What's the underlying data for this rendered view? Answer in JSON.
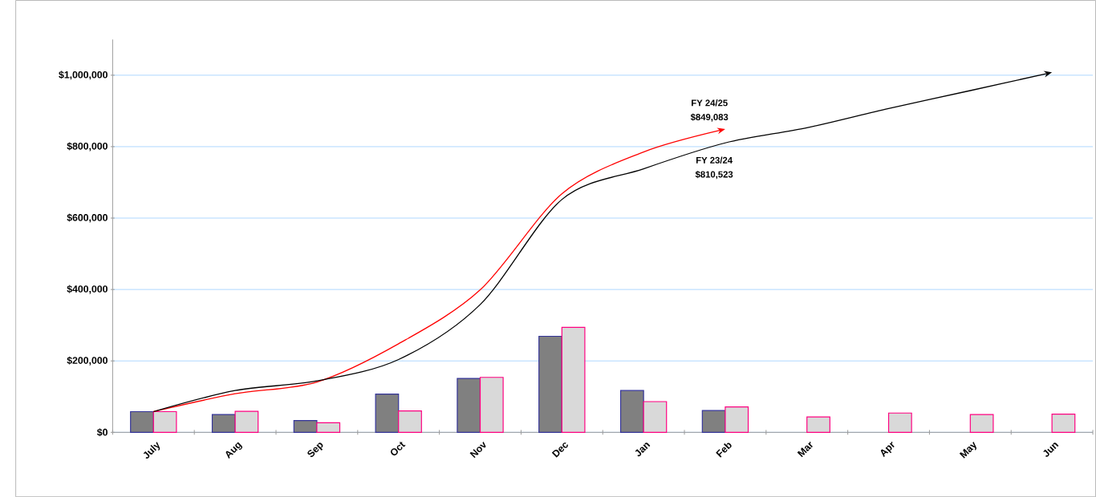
{
  "chart_data": {
    "type": "bar",
    "categories": [
      "July",
      "Aug",
      "Sep",
      "Oct",
      "Nov",
      "Dec",
      "Jan",
      "Feb",
      "Mar",
      "Apr",
      "May",
      "Jun"
    ],
    "series": [
      {
        "color": "#808080",
        "values": [
          58000,
          50000,
          33000,
          107000,
          151000,
          269000,
          117000,
          61000,
          null,
          null,
          null,
          null
        ]
      },
      {
        "color": "#d9d9d9",
        "values": [
          58000,
          59000,
          27000,
          60000,
          154000,
          294000,
          86000,
          71000,
          43000,
          54000,
          50000,
          51000
        ]
      },
      {
        "type": "line",
        "color": "#ff0000",
        "values": [
          58000,
          108000,
          141000,
          248000,
          399000,
          668000,
          785000,
          849083,
          null,
          null,
          null,
          null
        ]
      },
      {
        "type": "line",
        "color": "#000000",
        "values": [
          58000,
          117000,
          144000,
          204000,
          358000,
          652000,
          738000,
          810523,
          853000,
          907000,
          957000,
          1008000
        ]
      }
    ],
    "ylim": [
      0,
      1100000
    ],
    "yticks": [
      {
        "value": 0,
        "label": "$0"
      },
      {
        "value": 200000,
        "label": "$200,000"
      },
      {
        "value": 400000,
        "label": "$400,000"
      },
      {
        "value": 600000,
        "label": "$600,000"
      },
      {
        "value": 800000,
        "label": "$800,000"
      },
      {
        "value": 1000000,
        "label": "$1,000,000"
      }
    ],
    "grid": "y",
    "annotations": [
      "FY 24/25",
      "$849,083",
      "FY 23/24",
      "$810,523"
    ]
  }
}
